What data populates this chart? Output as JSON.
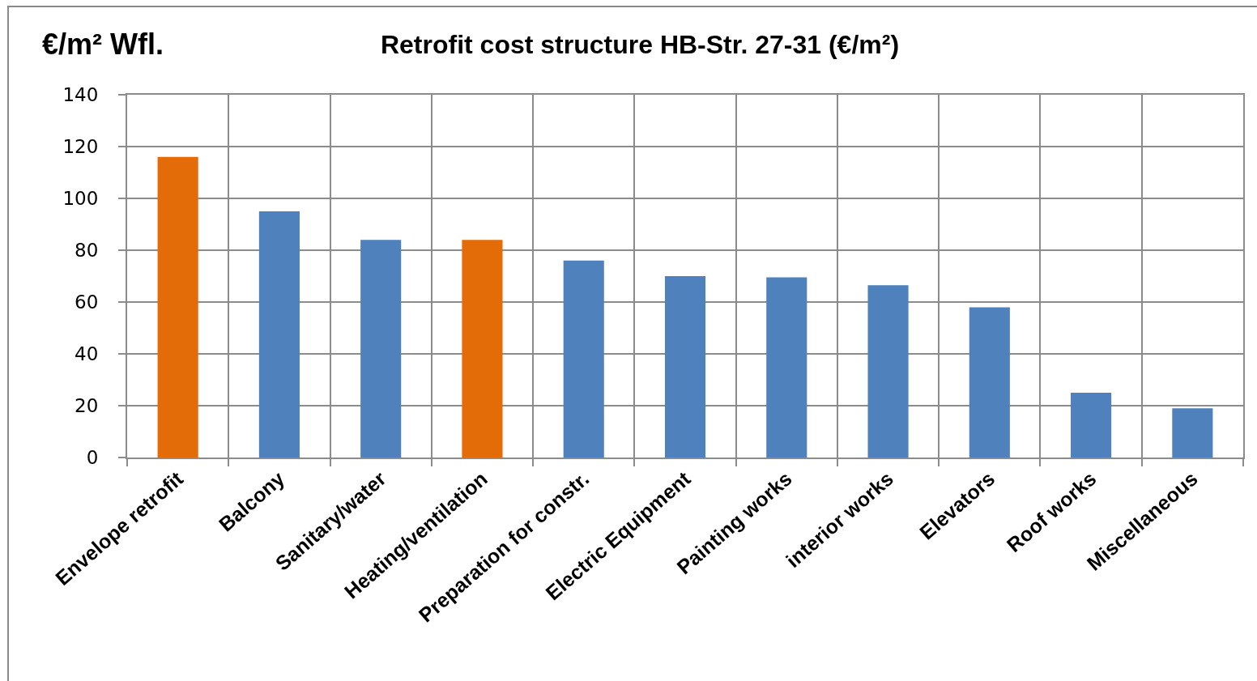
{
  "chart_data": {
    "type": "bar",
    "title": "Retrofit cost structure HB-Str. 27-31 (€/m²)",
    "ylabel": "€/m² Wfl.",
    "categories": [
      "Envelope retrofit",
      "Balcony",
      "Sanitary/water",
      "Heating/ventilation",
      "Preparation for constr.",
      "Electric Equipment",
      "Painting works",
      "interior works",
      "Elevators",
      "Roof works",
      "Miscellaneous"
    ],
    "values": [
      116,
      95,
      84,
      84,
      76,
      70,
      69.5,
      66.5,
      58,
      25,
      19
    ],
    "colors": [
      "#e36c09",
      "#4f81bd",
      "#4f81bd",
      "#e36c09",
      "#4f81bd",
      "#4f81bd",
      "#4f81bd",
      "#4f81bd",
      "#4f81bd",
      "#4f81bd",
      "#4f81bd"
    ],
    "ylim": [
      0,
      140
    ],
    "yticks": [
      0,
      20,
      40,
      60,
      80,
      100,
      120,
      140
    ],
    "grid": true
  }
}
